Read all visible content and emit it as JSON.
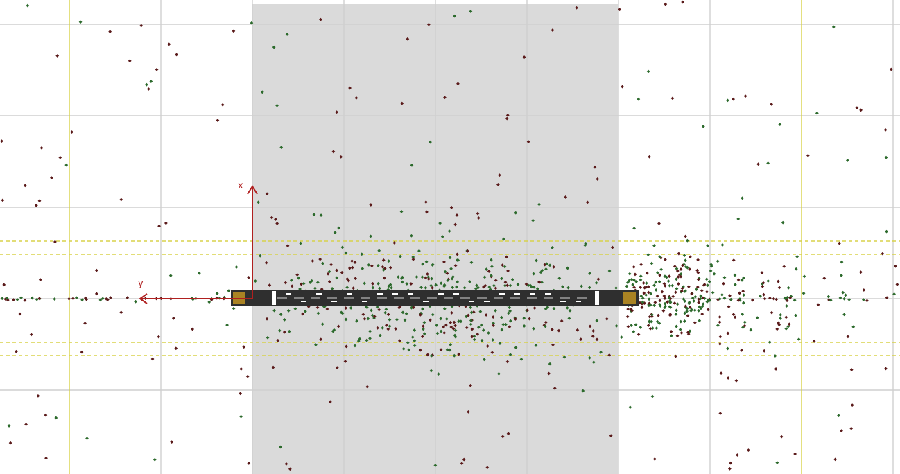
{
  "viewport": {
    "kind": "3d-scatter-viewport",
    "grid": "on",
    "colors": {
      "background": "#ffffff",
      "highlight_band": "#dadada",
      "grid_line": "#cfcfcf",
      "guide_line": "#d8d24a",
      "axis": "#b02020",
      "beam": "#2f2f2f",
      "marker_dark_red": "#5a1a1a",
      "marker_green": "#2c6a2c",
      "end_cap": "#d4a020"
    }
  },
  "axes": {
    "x_label": "x",
    "y_label": "y"
  },
  "markers": {
    "series": [
      "dark-red",
      "green"
    ],
    "description_note": ""
  }
}
